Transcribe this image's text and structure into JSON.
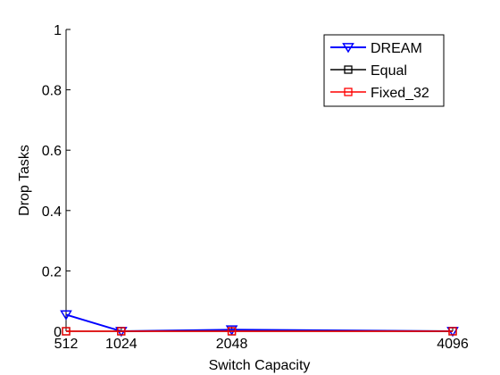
{
  "chart_data": {
    "type": "line",
    "title": "",
    "xlabel": "Switch Capacity",
    "ylabel": "Drop Tasks",
    "x": [
      512,
      1024,
      2048,
      4096
    ],
    "xticks": [
      512,
      1024,
      2048,
      4096
    ],
    "xtick_labels": [
      "512",
      "1024",
      "2048",
      "4096"
    ],
    "xlim": [
      512,
      4096
    ],
    "ylim": [
      0,
      1
    ],
    "yticks": [
      0,
      0.2,
      0.4,
      0.6,
      0.8,
      1
    ],
    "ytick_labels": [
      "0",
      "0.2",
      "0.4",
      "0.6",
      "0.8",
      "1"
    ],
    "grid": false,
    "legend_position": "top-right",
    "series": [
      {
        "name": "DREAM",
        "values": [
          0.055,
          0.0,
          0.005,
          0.0
        ],
        "color": "#0000ff",
        "marker": "triangle-down"
      },
      {
        "name": "Equal",
        "values": [
          0,
          0,
          0,
          0
        ],
        "color": "#000000",
        "marker": "square"
      },
      {
        "name": "Fixed_32",
        "values": [
          0,
          0,
          0,
          0
        ],
        "color": "#ff0000",
        "marker": "square"
      }
    ]
  }
}
